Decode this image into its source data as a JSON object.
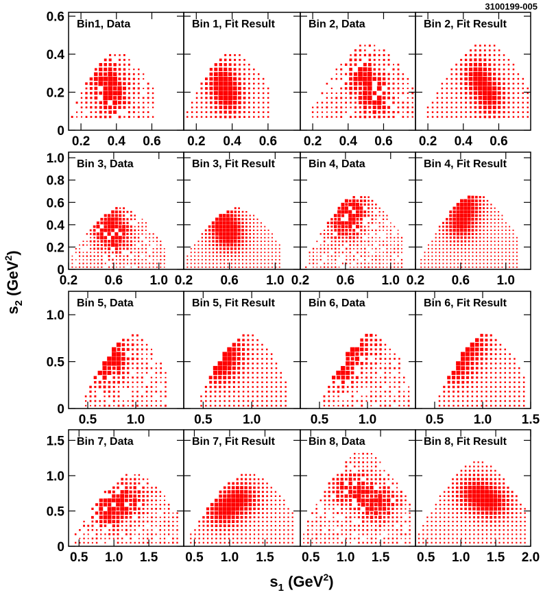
{
  "figure_id": "3100199-005",
  "xlabel": "s",
  "xlabel_sub": "1",
  "xlabel_unit_pre": " (GeV",
  "xlabel_sup": "2",
  "xlabel_unit_post": ")",
  "ylabel": "s",
  "ylabel_sub": "2",
  "ylabel_unit_pre": " (GeV",
  "ylabel_sup": "2",
  "ylabel_unit_post": ")",
  "colors": {
    "box": "#ff0000",
    "axis": "#000000",
    "background": "#ffffff"
  },
  "chart_data": {
    "type": "box-histogram-2d",
    "rows": [
      {
        "ylim": [
          0,
          0.62
        ],
        "yticks": [
          0,
          0.2,
          0.4,
          0.6
        ],
        "ytick_labels": [
          "0",
          "0.2",
          "0.4",
          "0.6"
        ],
        "ygrid": 0.025,
        "hist_xlim": [
          0.15,
          0.62
        ],
        "hist_ylim": [
          0.07,
          0.42
        ],
        "peaks": [
          [
            0.38,
            0.18
          ],
          [
            0.34,
            0.26
          ]
        ],
        "spread": 0.09,
        "panels": [
          {
            "title": "Bin1, Data",
            "kind": "data",
            "seed": 11,
            "xlim": [
              0.13,
              0.78
            ],
            "xticks": [
              0.2,
              0.4,
              0.6
            ],
            "xtick_labels": [
              "0.2",
              "0.4",
              "0.6"
            ]
          },
          {
            "title": "Bin 1, Fit Result",
            "kind": "fit",
            "seed": 12,
            "xlim": [
              0.13,
              0.78
            ],
            "xticks": [
              0.2,
              0.4,
              0.6
            ],
            "xtick_labels": [
              "0.2",
              "0.4",
              "0.6"
            ]
          },
          {
            "title": "Bin 2, Data",
            "kind": "data",
            "seed": 21,
            "xlim": [
              0.13,
              0.78
            ],
            "xticks": [
              0.2,
              0.4,
              0.6
            ],
            "xtick_labels": [
              "0.2",
              "0.4",
              "0.6"
            ],
            "hist_xlim": [
              0.2,
              0.78
            ],
            "hist_ylim": [
              0.07,
              0.47
            ],
            "peaks": [
              [
                0.55,
                0.18
              ],
              [
                0.48,
                0.28
              ]
            ]
          },
          {
            "title": "Bin 2, Fit Result",
            "kind": "fit",
            "seed": 22,
            "xlim": [
              0.13,
              0.78
            ],
            "xticks": [
              0.2,
              0.4,
              0.6
            ],
            "xtick_labels": [
              "0.2",
              "0.4",
              "0.6"
            ],
            "hist_xlim": [
              0.2,
              0.78
            ],
            "hist_ylim": [
              0.07,
              0.47
            ],
            "peaks": [
              [
                0.55,
                0.18
              ],
              [
                0.48,
                0.28
              ]
            ]
          }
        ]
      },
      {
        "ylim": [
          0,
          1.05
        ],
        "yticks": [
          0,
          0.2,
          0.4,
          0.6,
          0.8,
          1.0
        ],
        "ytick_labels": [
          "0",
          "0.2",
          "0.4",
          "0.6",
          "0.8",
          "1.0"
        ],
        "ygrid": 0.033,
        "hist_xlim": [
          0.2,
          1.05
        ],
        "hist_ylim": [
          0.02,
          0.56
        ],
        "peaks": [
          [
            0.55,
            0.42
          ],
          [
            0.6,
            0.3
          ]
        ],
        "spread": 0.16,
        "panels": [
          {
            "title": "Bin 3, Data",
            "kind": "data",
            "seed": 31,
            "xlim": [
              0.2,
              1.22
            ],
            "xticks": [
              0.2,
              0.6,
              1.0
            ],
            "xtick_labels": [
              "0.2",
              "0.6",
              "1.0"
            ]
          },
          {
            "title": "Bin 3, Fit Result",
            "kind": "fit",
            "seed": 32,
            "xlim": [
              0.2,
              1.22
            ],
            "xticks": [
              0.2,
              0.6,
              1.0
            ],
            "xtick_labels": [
              "0.2",
              "0.6",
              "1.0"
            ]
          },
          {
            "title": "Bin 4, Data",
            "kind": "data",
            "seed": 41,
            "xlim": [
              0.2,
              1.22
            ],
            "xticks": [
              0.2,
              0.6,
              1.0
            ],
            "xtick_labels": [
              "0.2",
              "0.6",
              "1.0"
            ],
            "hist_xlim": [
              0.25,
              1.12
            ],
            "hist_ylim": [
              0.02,
              0.68
            ],
            "peaks": [
              [
                0.65,
                0.55
              ],
              [
                0.6,
                0.4
              ]
            ]
          },
          {
            "title": "Bin 4, Fit Result",
            "kind": "fit",
            "seed": 42,
            "xlim": [
              0.2,
              1.22
            ],
            "xticks": [
              0.2,
              0.6,
              1.0
            ],
            "xtick_labels": [
              "0.2",
              "0.6",
              "1.0"
            ],
            "hist_xlim": [
              0.25,
              1.12
            ],
            "hist_ylim": [
              0.02,
              0.68
            ],
            "peaks": [
              [
                0.65,
                0.58
              ],
              [
                0.6,
                0.4
              ]
            ]
          }
        ]
      },
      {
        "ylim": [
          0,
          1.25
        ],
        "yticks": [
          0,
          0.5,
          1.0
        ],
        "ytick_labels": [
          "0",
          "0.5",
          "1.0"
        ],
        "ygrid": 0.05,
        "hist_xlim": [
          0.48,
          1.35
        ],
        "hist_ylim": [
          0.03,
          0.82
        ],
        "peaks": [
          [
            0.72,
            0.62
          ],
          [
            0.65,
            0.45
          ]
        ],
        "spread": 0.22,
        "panels": [
          {
            "title": "Bin 5, Data",
            "kind": "data",
            "seed": 51,
            "xlim": [
              0.3,
              1.5
            ],
            "xticks": [
              0.5,
              1.0
            ],
            "xtick_labels": [
              "0.5",
              "1.0"
            ]
          },
          {
            "title": "Bin 5, Fit Result",
            "kind": "fit",
            "seed": 52,
            "xlim": [
              0.3,
              1.5
            ],
            "xticks": [
              0.5,
              1.0
            ],
            "xtick_labels": [
              "0.5",
              "1.0"
            ]
          },
          {
            "title": "Bin 6, Data",
            "kind": "data",
            "seed": 61,
            "xlim": [
              0.3,
              1.5
            ],
            "xticks": [
              0.5,
              1.0
            ],
            "xtick_labels": [
              "0.5",
              "1.0"
            ],
            "hist_xlim": [
              0.55,
              1.45
            ],
            "hist_ylim": [
              0.03,
              0.82
            ],
            "peaks": [
              [
                0.85,
                0.68
              ],
              [
                0.7,
                0.45
              ]
            ]
          },
          {
            "title": "Bin 6, Fit Result",
            "kind": "fit",
            "seed": 62,
            "xlim": [
              0.3,
              1.5
            ],
            "xticks": [
              0.5,
              1.0,
              1.5
            ],
            "xtick_labels": [
              "0.5",
              "1.0",
              "1.5"
            ],
            "hist_xlim": [
              0.55,
              1.45
            ],
            "hist_ylim": [
              0.03,
              0.82
            ],
            "peaks": [
              [
                0.85,
                0.68
              ],
              [
                0.7,
                0.45
              ]
            ]
          }
        ]
      },
      {
        "ylim": [
          0,
          1.65
        ],
        "yticks": [
          0,
          0.5,
          1.0,
          1.5
        ],
        "ytick_labels": [
          "0",
          "0.5",
          "1.0",
          "1.5"
        ],
        "ygrid": 0.06,
        "hist_xlim": [
          0.45,
          1.95
        ],
        "hist_ylim": [
          0.05,
          1.05
        ],
        "peaks": [
          [
            1.15,
            0.68
          ],
          [
            0.9,
            0.5
          ]
        ],
        "spread": 0.3,
        "panels": [
          {
            "title": "Bin 7, Data",
            "kind": "data",
            "seed": 71,
            "xlim": [
              0.35,
              2.0
            ],
            "xticks": [
              0.5,
              1.0,
              1.5
            ],
            "xtick_labels": [
              "0.5",
              "1.0",
              "1.5"
            ]
          },
          {
            "title": "Bin 7, Fit Result",
            "kind": "fit",
            "seed": 72,
            "xlim": [
              0.35,
              2.0
            ],
            "xticks": [
              0.5,
              1.0,
              1.5
            ],
            "xtick_labels": [
              "0.5",
              "1.0",
              "1.5"
            ]
          },
          {
            "title": "Bin 8, Data",
            "kind": "data",
            "seed": 81,
            "xlim": [
              0.35,
              2.0
            ],
            "xticks": [
              0.5,
              1.0,
              1.5
            ],
            "xtick_labels": [
              "0.5",
              "1.0",
              "1.5"
            ],
            "hist_xlim": [
              0.4,
              1.95
            ],
            "hist_ylim": [
              0.05,
              1.38
            ],
            "peaks": [
              [
                1.45,
                0.6
              ],
              [
                1.1,
                0.8
              ]
            ]
          },
          {
            "title": "Bin 8, Fit Result",
            "kind": "fit",
            "seed": 82,
            "xlim": [
              0.35,
              2.0
            ],
            "xticks": [
              0.5,
              1.0,
              1.5,
              2.0
            ],
            "xtick_labels": [
              "0.5",
              "1.0",
              "1.5",
              "2.0"
            ],
            "hist_xlim": [
              0.4,
              1.95
            ],
            "hist_ylim": [
              0.05,
              1.22
            ],
            "peaks": [
              [
                1.45,
                0.62
              ],
              [
                1.2,
                0.75
              ]
            ]
          }
        ]
      }
    ]
  }
}
